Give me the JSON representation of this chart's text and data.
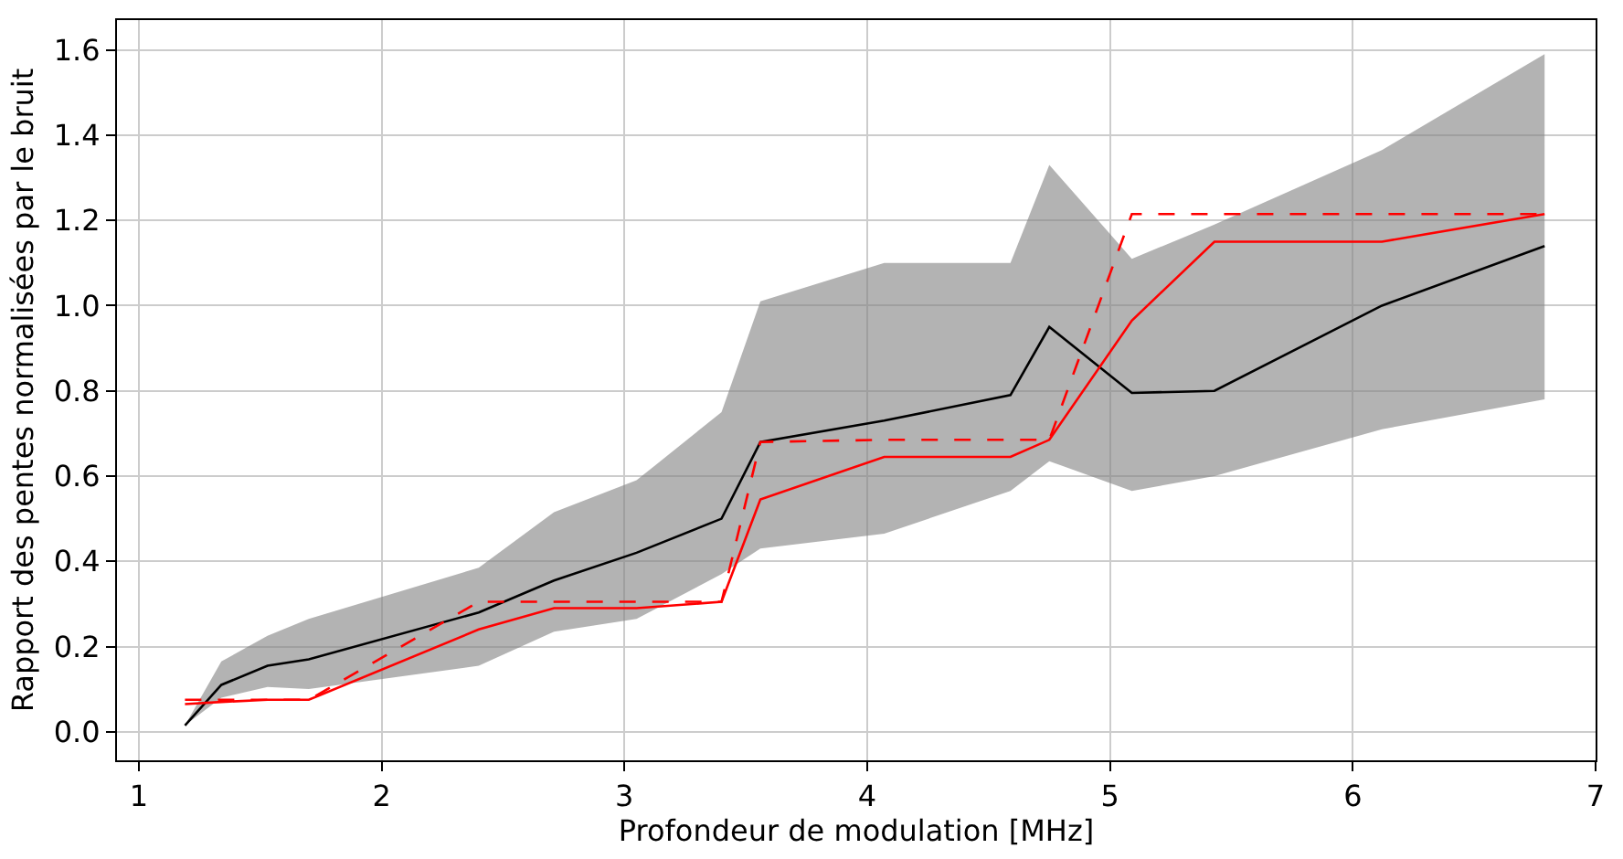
{
  "chart_data": {
    "type": "line",
    "xlabel": "Profondeur de modulation [MHz]",
    "ylabel": "Rapport des pentes normalisées par le bruit",
    "x": [
      1.19,
      1.34,
      1.53,
      1.7,
      2.4,
      2.71,
      3.05,
      3.4,
      3.56,
      4.07,
      4.59,
      4.75,
      5.09,
      5.43,
      6.12,
      6.79
    ],
    "series": [
      {
        "color": "#000000",
        "line_style": "solid",
        "values": [
          0.015,
          0.11,
          0.155,
          0.17,
          0.28,
          0.355,
          0.42,
          0.5,
          0.68,
          0.73,
          0.79,
          0.95,
          0.795,
          0.8,
          1.0,
          1.14
        ],
        "lower": [
          0.015,
          0.08,
          0.105,
          0.1,
          0.155,
          0.235,
          0.265,
          0.37,
          0.43,
          0.465,
          0.565,
          0.635,
          0.565,
          0.6,
          0.71,
          0.78
        ],
        "upper": [
          0.015,
          0.165,
          0.225,
          0.265,
          0.385,
          0.515,
          0.59,
          0.75,
          1.01,
          1.1,
          1.1,
          1.33,
          1.11,
          1.19,
          1.365,
          1.59
        ]
      },
      {
        "color": "#ff0000",
        "line_style": "solid",
        "values": [
          0.065,
          0.07,
          0.075,
          0.075,
          0.24,
          0.29,
          0.29,
          0.305,
          0.545,
          0.645,
          0.645,
          0.685,
          0.965,
          1.15,
          1.15,
          1.215
        ]
      },
      {
        "color": "#ff0000",
        "line_style": "dashed",
        "values": [
          0.075,
          0.075,
          0.075,
          0.075,
          0.305,
          0.305,
          0.305,
          0.305,
          0.68,
          0.685,
          0.685,
          0.685,
          1.215,
          1.215,
          1.215,
          1.215
        ]
      }
    ],
    "xlim": [
      0.91,
      7
    ],
    "ylim": [
      -0.067,
      1.67
    ],
    "xticks": [
      1,
      2,
      3,
      4,
      5,
      6,
      7
    ],
    "yticks": [
      {
        "value": 0,
        "label": "0.0"
      },
      {
        "value": 0.2,
        "label": "0.2"
      },
      {
        "value": 0.4,
        "label": "0.4"
      },
      {
        "value": 0.6,
        "label": "0.6"
      },
      {
        "value": 0.8,
        "label": "0.8"
      },
      {
        "value": 1,
        "label": "1.0"
      },
      {
        "value": 1.2,
        "label": "1.2"
      },
      {
        "value": 1.4,
        "label": "1.4"
      },
      {
        "value": 1.6,
        "label": "1.6"
      }
    ],
    "grid": true,
    "marker": "none"
  }
}
